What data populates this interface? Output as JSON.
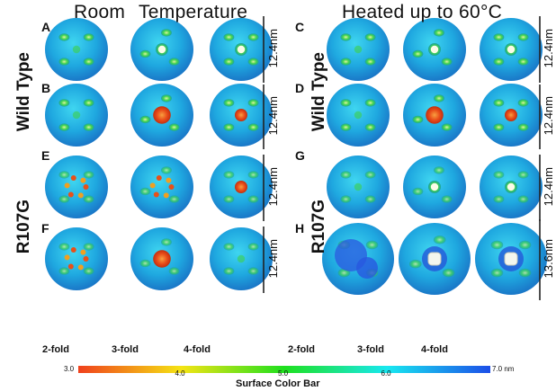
{
  "headers": {
    "room": "Room",
    "temperature": "Temperature",
    "heated": "Heated up to 60°C"
  },
  "panels": {
    "A": "A",
    "B": "B",
    "C": "C",
    "D": "D",
    "E": "E",
    "F": "F",
    "G": "G",
    "H": "H"
  },
  "row_labels": {
    "wild_left": "Wild Type",
    "r107g_left": "R107G",
    "wild_right": "Wild Type",
    "r107g_right": "R107G"
  },
  "scale_bars": {
    "A": "12.4nm",
    "B": "12.4nm",
    "E": "12.4nm",
    "F": "12.4nm",
    "C": "12.4nm",
    "D": "12.4nm",
    "G": "12.4nm",
    "H": "13.6nm"
  },
  "folds": [
    "2-fold",
    "3-fold",
    "4-fold",
    "2-fold",
    "3-fold",
    "4-fold"
  ],
  "color_bar": {
    "title": "Surface Color Bar",
    "ticks": [
      {
        "v": 3.0,
        "label": "3.0"
      },
      {
        "v": 4.0,
        "label": "4.0"
      },
      {
        "v": 5.0,
        "label": "5.0"
      },
      {
        "v": 6.0,
        "label": "6.0"
      },
      {
        "v": 7.0,
        "label": "7.0 nm"
      }
    ],
    "range": [
      3.0,
      7.0
    ],
    "colors": [
      "#f0401c",
      "#f5e414",
      "#1ee01e",
      "#18e8f0",
      "#1c4ee8"
    ]
  }
}
